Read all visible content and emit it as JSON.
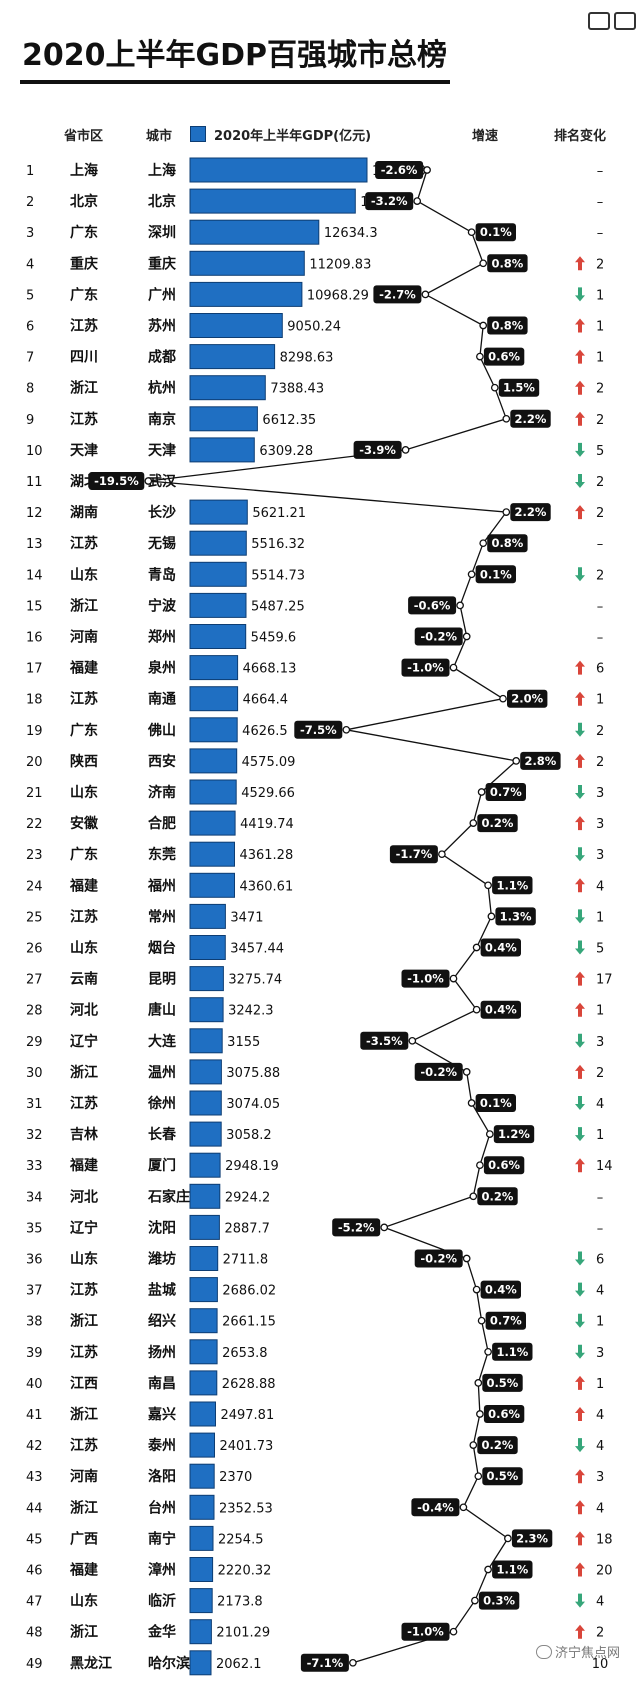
{
  "title": "2020上半年GDP百强城市总榜",
  "headers": {
    "province": "省市区",
    "city": "城市",
    "gdp": "2020年上半年GDP(亿元)",
    "growth": "增速",
    "rank_change": "排名变化"
  },
  "watermark": "济宁焦点网",
  "colors": {
    "bar": "#1f6fc2",
    "bar_border": "#0d3d73",
    "up": "#d9453a",
    "down": "#36a67a",
    "label_bg": "#111111"
  },
  "chart_data": {
    "type": "bar",
    "title": "2020上半年GDP百强城市总榜",
    "xlabel": "2020年上半年GDP(亿元)",
    "rows": [
      {
        "rank": "1",
        "province": "上海",
        "city": "上海",
        "gdp": 17356.8,
        "gdp_label": "17356.8",
        "growth": "-2.6%",
        "change_dir": "none",
        "change": "–"
      },
      {
        "rank": "2",
        "province": "北京",
        "city": "北京",
        "gdp": 16205.6,
        "gdp_label": "16205.6",
        "growth": "-3.2%",
        "change_dir": "none",
        "change": "–"
      },
      {
        "rank": "3",
        "province": "广东",
        "city": "深圳",
        "gdp": 12634.3,
        "gdp_label": "12634.3",
        "growth": "0.1%",
        "change_dir": "none",
        "change": "–"
      },
      {
        "rank": "4",
        "province": "重庆",
        "city": "重庆",
        "gdp": 11209.83,
        "gdp_label": "11209.83",
        "growth": "0.8%",
        "change_dir": "up",
        "change": "2"
      },
      {
        "rank": "5",
        "province": "广东",
        "city": "广州",
        "gdp": 10968.29,
        "gdp_label": "10968.29",
        "growth": "-2.7%",
        "change_dir": "down",
        "change": "1"
      },
      {
        "rank": "6",
        "province": "江苏",
        "city": "苏州",
        "gdp": 9050.24,
        "gdp_label": "9050.24",
        "growth": "0.8%",
        "change_dir": "up",
        "change": "1"
      },
      {
        "rank": "7",
        "province": "四川",
        "city": "成都",
        "gdp": 8298.63,
        "gdp_label": "8298.63",
        "growth": "0.6%",
        "change_dir": "up",
        "change": "1"
      },
      {
        "rank": "8",
        "province": "浙江",
        "city": "杭州",
        "gdp": 7388.43,
        "gdp_label": "7388.43",
        "growth": "1.5%",
        "change_dir": "up",
        "change": "2"
      },
      {
        "rank": "9",
        "province": "江苏",
        "city": "南京",
        "gdp": 6612.35,
        "gdp_label": "6612.35",
        "growth": "2.2%",
        "change_dir": "up",
        "change": "2"
      },
      {
        "rank": "10",
        "province": "天津",
        "city": "天津",
        "gdp": 6309.28,
        "gdp_label": "6309.28",
        "growth": "-3.9%",
        "change_dir": "down",
        "change": "5"
      },
      {
        "rank": "11",
        "province": "湖北",
        "city": "武汉",
        "gdp": null,
        "gdp_label": "",
        "growth": "-19.5%",
        "change_dir": "down",
        "change": "2"
      },
      {
        "rank": "12",
        "province": "湖南",
        "city": "长沙",
        "gdp": 5621.21,
        "gdp_label": "5621.21",
        "growth": "2.2%",
        "change_dir": "up",
        "change": "2"
      },
      {
        "rank": "13",
        "province": "江苏",
        "city": "无锡",
        "gdp": 5516.32,
        "gdp_label": "5516.32",
        "growth": "0.8%",
        "change_dir": "none",
        "change": "–"
      },
      {
        "rank": "14",
        "province": "山东",
        "city": "青岛",
        "gdp": 5514.73,
        "gdp_label": "5514.73",
        "growth": "0.1%",
        "change_dir": "down",
        "change": "2"
      },
      {
        "rank": "15",
        "province": "浙江",
        "city": "宁波",
        "gdp": 5487.25,
        "gdp_label": "5487.25",
        "growth": "-0.6%",
        "change_dir": "none",
        "change": "–"
      },
      {
        "rank": "16",
        "province": "河南",
        "city": "郑州",
        "gdp": 5459.6,
        "gdp_label": "5459.6",
        "growth": "-0.2%",
        "change_dir": "none",
        "change": "–"
      },
      {
        "rank": "17",
        "province": "福建",
        "city": "泉州",
        "gdp": 4668.13,
        "gdp_label": "4668.13",
        "growth": "-1.0%",
        "change_dir": "up",
        "change": "6"
      },
      {
        "rank": "18",
        "province": "江苏",
        "city": "南通",
        "gdp": 4664.4,
        "gdp_label": "4664.4",
        "growth": "2.0%",
        "change_dir": "up",
        "change": "1"
      },
      {
        "rank": "19",
        "province": "广东",
        "city": "佛山",
        "gdp": 4626.5,
        "gdp_label": "4626.5",
        "growth": "-7.5%",
        "change_dir": "down",
        "change": "2"
      },
      {
        "rank": "20",
        "province": "陕西",
        "city": "西安",
        "gdp": 4575.09,
        "gdp_label": "4575.09",
        "growth": "2.8%",
        "change_dir": "up",
        "change": "2"
      },
      {
        "rank": "21",
        "province": "山东",
        "city": "济南",
        "gdp": 4529.66,
        "gdp_label": "4529.66",
        "growth": "0.7%",
        "change_dir": "down",
        "change": "3"
      },
      {
        "rank": "22",
        "province": "安徽",
        "city": "合肥",
        "gdp": 4419.74,
        "gdp_label": "4419.74",
        "growth": "0.2%",
        "change_dir": "up",
        "change": "3"
      },
      {
        "rank": "23",
        "province": "广东",
        "city": "东莞",
        "gdp": 4361.28,
        "gdp_label": "4361.28",
        "growth": "-1.7%",
        "change_dir": "down",
        "change": "3"
      },
      {
        "rank": "24",
        "province": "福建",
        "city": "福州",
        "gdp": 4360.61,
        "gdp_label": "4360.61",
        "growth": "1.1%",
        "change_dir": "up",
        "change": "4"
      },
      {
        "rank": "25",
        "province": "江苏",
        "city": "常州",
        "gdp": 3471,
        "gdp_label": "3471",
        "growth": "1.3%",
        "change_dir": "down",
        "change": "1"
      },
      {
        "rank": "26",
        "province": "山东",
        "city": "烟台",
        "gdp": 3457.44,
        "gdp_label": "3457.44",
        "growth": "0.4%",
        "change_dir": "down",
        "change": "5"
      },
      {
        "rank": "27",
        "province": "云南",
        "city": "昆明",
        "gdp": 3275.74,
        "gdp_label": "3275.74",
        "growth": "-1.0%",
        "change_dir": "up",
        "change": "17"
      },
      {
        "rank": "28",
        "province": "河北",
        "city": "唐山",
        "gdp": 3242.3,
        "gdp_label": "3242.3",
        "growth": "0.4%",
        "change_dir": "up",
        "change": "1"
      },
      {
        "rank": "29",
        "province": "辽宁",
        "city": "大连",
        "gdp": 3155,
        "gdp_label": "3155",
        "growth": "-3.5%",
        "change_dir": "down",
        "change": "3"
      },
      {
        "rank": "30",
        "province": "浙江",
        "city": "温州",
        "gdp": 3075.88,
        "gdp_label": "3075.88",
        "growth": "-0.2%",
        "change_dir": "up",
        "change": "2"
      },
      {
        "rank": "31",
        "province": "江苏",
        "city": "徐州",
        "gdp": 3074.05,
        "gdp_label": "3074.05",
        "growth": "0.1%",
        "change_dir": "down",
        "change": "4"
      },
      {
        "rank": "32",
        "province": "吉林",
        "city": "长春",
        "gdp": 3058.2,
        "gdp_label": "3058.2",
        "growth": "1.2%",
        "change_dir": "down",
        "change": "1"
      },
      {
        "rank": "33",
        "province": "福建",
        "city": "厦门",
        "gdp": 2948.19,
        "gdp_label": "2948.19",
        "growth": "0.6%",
        "change_dir": "up",
        "change": "14"
      },
      {
        "rank": "34",
        "province": "河北",
        "city": "石家庄",
        "gdp": 2924.2,
        "gdp_label": "2924.2",
        "growth": "0.2%",
        "change_dir": "none",
        "change": "–"
      },
      {
        "rank": "35",
        "province": "辽宁",
        "city": "沈阳",
        "gdp": 2887.7,
        "gdp_label": "2887.7",
        "growth": "-5.2%",
        "change_dir": "none",
        "change": "–"
      },
      {
        "rank": "36",
        "province": "山东",
        "city": "潍坊",
        "gdp": 2711.8,
        "gdp_label": "2711.8",
        "growth": "-0.2%",
        "change_dir": "down",
        "change": "6"
      },
      {
        "rank": "37",
        "province": "江苏",
        "city": "盐城",
        "gdp": 2686.02,
        "gdp_label": "2686.02",
        "growth": "0.4%",
        "change_dir": "down",
        "change": "4"
      },
      {
        "rank": "38",
        "province": "浙江",
        "city": "绍兴",
        "gdp": 2661.15,
        "gdp_label": "2661.15",
        "growth": "0.7%",
        "change_dir": "down",
        "change": "1"
      },
      {
        "rank": "39",
        "province": "江苏",
        "city": "扬州",
        "gdp": 2653.8,
        "gdp_label": "2653.8",
        "growth": "1.1%",
        "change_dir": "down",
        "change": "3"
      },
      {
        "rank": "40",
        "province": "江西",
        "city": "南昌",
        "gdp": 2628.88,
        "gdp_label": "2628.88",
        "growth": "0.5%",
        "change_dir": "up",
        "change": "1"
      },
      {
        "rank": "41",
        "province": "浙江",
        "city": "嘉兴",
        "gdp": 2497.81,
        "gdp_label": "2497.81",
        "growth": "0.6%",
        "change_dir": "up",
        "change": "4"
      },
      {
        "rank": "42",
        "province": "江苏",
        "city": "泰州",
        "gdp": 2401.73,
        "gdp_label": "2401.73",
        "growth": "0.2%",
        "change_dir": "down",
        "change": "4"
      },
      {
        "rank": "43",
        "province": "河南",
        "city": "洛阳",
        "gdp": 2370,
        "gdp_label": "2370",
        "growth": "0.5%",
        "change_dir": "up",
        "change": "3"
      },
      {
        "rank": "44",
        "province": "浙江",
        "city": "台州",
        "gdp": 2352.53,
        "gdp_label": "2352.53",
        "growth": "-0.4%",
        "change_dir": "up",
        "change": "4"
      },
      {
        "rank": "45",
        "province": "广西",
        "city": "南宁",
        "gdp": 2254.5,
        "gdp_label": "2254.5",
        "growth": "2.3%",
        "change_dir": "up",
        "change": "18"
      },
      {
        "rank": "46",
        "province": "福建",
        "city": "漳州",
        "gdp": 2220.32,
        "gdp_label": "2220.32",
        "growth": "1.1%",
        "change_dir": "up",
        "change": "20"
      },
      {
        "rank": "47",
        "province": "山东",
        "city": "临沂",
        "gdp": 2173.8,
        "gdp_label": "2173.8",
        "growth": "0.3%",
        "change_dir": "down",
        "change": "4"
      },
      {
        "rank": "48",
        "province": "浙江",
        "city": "金华",
        "gdp": 2101.29,
        "gdp_label": "2101.29",
        "growth": "-1.0%",
        "change_dir": "up",
        "change": "2"
      },
      {
        "rank": "49",
        "province": "黑龙江",
        "city": "哈尔滨",
        "gdp": 2062.1,
        "gdp_label": "2062.1",
        "growth": "-7.1%",
        "change_dir": "none",
        "change": "10"
      }
    ]
  }
}
